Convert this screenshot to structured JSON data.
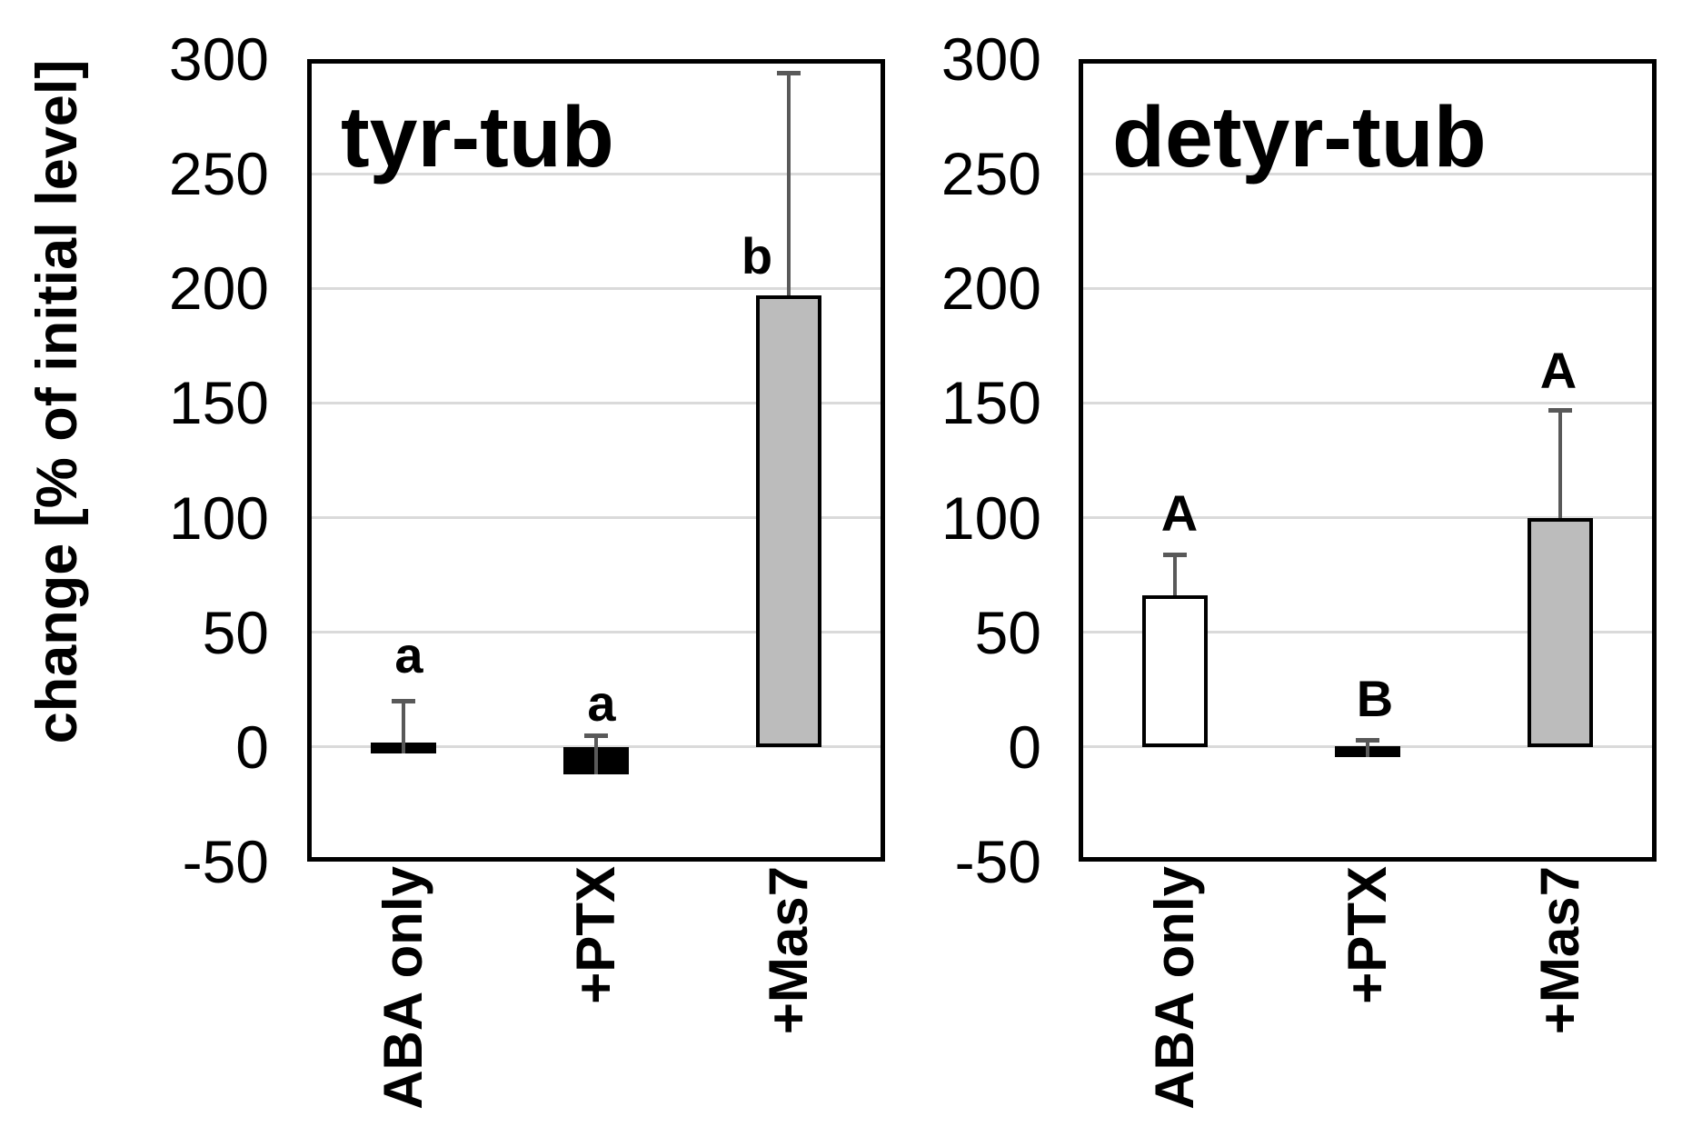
{
  "figure": {
    "background": "#ffffff"
  },
  "y_axis": {
    "label": "change [% of initial level]",
    "min": -50,
    "max": 300,
    "tick_step": 50,
    "ticks": [
      300,
      250,
      200,
      150,
      100,
      50,
      0,
      -50
    ]
  },
  "categories": [
    "ABA only",
    "+PTX",
    "+Mas7"
  ],
  "chart_data": [
    {
      "type": "bar",
      "title": "tyr-tub",
      "categories": [
        "ABA only",
        "+PTX",
        "+Mas7"
      ],
      "values": [
        -1,
        -12,
        197
      ],
      "errors_up": [
        20,
        5,
        294
      ],
      "sig_letters": [
        "a",
        "a",
        "b"
      ],
      "sig_letter_y": [
        40,
        19,
        214
      ],
      "sig_letter_dx": [
        6,
        6,
        -35
      ],
      "bar_fills": [
        "#000000",
        "#000000",
        "#bcbcbc"
      ],
      "ylim": [
        -50,
        300
      ],
      "grid": true,
      "legend": "none"
    },
    {
      "type": "bar",
      "title": "detyr-tub",
      "categories": [
        "ABA only",
        "+PTX",
        "+Mas7"
      ],
      "values": [
        66,
        -4,
        100
      ],
      "errors_up": [
        84,
        3,
        147
      ],
      "sig_letters": [
        "A",
        "B",
        "A"
      ],
      "sig_letter_y": [
        102,
        21,
        164
      ],
      "sig_letter_dx": [
        5,
        8,
        -2
      ],
      "bar_fills": [
        "#ffffff",
        "#000000",
        "#bcbcbc"
      ],
      "ylim": [
        -50,
        300
      ],
      "grid": true,
      "legend": "none"
    }
  ],
  "colors": {
    "bar_border": "#000000",
    "error_bar": "#595959",
    "gridline": "#dadada",
    "plot_border": "#000000",
    "text": "#000000"
  }
}
